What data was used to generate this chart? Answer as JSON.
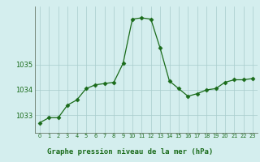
{
  "x": [
    0,
    1,
    2,
    3,
    4,
    5,
    6,
    7,
    8,
    9,
    10,
    11,
    12,
    13,
    14,
    15,
    16,
    17,
    18,
    19,
    20,
    21,
    22,
    23
  ],
  "y": [
    1032.7,
    1032.9,
    1032.9,
    1033.4,
    1033.6,
    1034.05,
    1034.2,
    1034.25,
    1034.3,
    1035.05,
    1036.8,
    1036.85,
    1036.8,
    1035.65,
    1034.35,
    1034.05,
    1033.75,
    1033.85,
    1034.0,
    1034.05,
    1034.3,
    1034.4,
    1034.4,
    1034.45
  ],
  "line_color": "#1a6b1a",
  "marker_color": "#1a6b1a",
  "bg_color": "#d4eeee",
  "grid_color": "#a8cccc",
  "axis_label_color": "#1a6b1a",
  "tick_color": "#1a6b1a",
  "xlabel": "Graphe pression niveau de la mer (hPa)",
  "yticks": [
    1033,
    1034,
    1035
  ],
  "ylim": [
    1032.3,
    1037.3
  ],
  "xlim": [
    -0.5,
    23.5
  ],
  "marker_size": 2.5,
  "line_width": 0.9
}
